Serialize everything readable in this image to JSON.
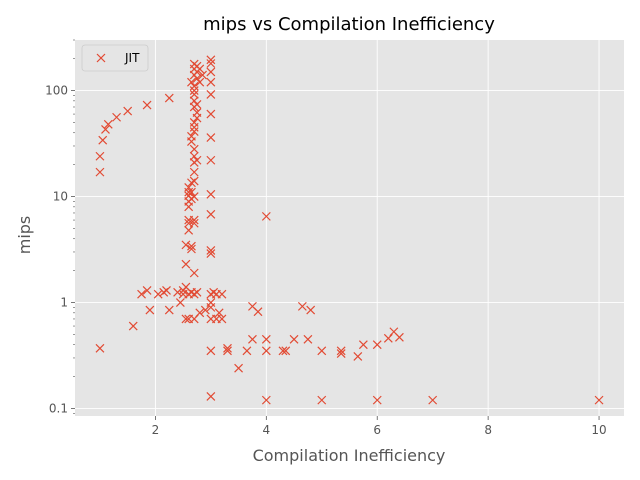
{
  "chart_data": {
    "type": "scatter",
    "title": "mips vs Compilation Inefficiency",
    "xlabel": "Compilation Inefficiency",
    "ylabel": "mips",
    "xscale": "linear",
    "yscale": "log",
    "xlim": [
      0.55,
      10.45
    ],
    "ylim": [
      0.085,
      300
    ],
    "grid": true,
    "legend_position": "upper-left",
    "xticks": [
      {
        "value": 2,
        "label": "2"
      },
      {
        "value": 4,
        "label": "4"
      },
      {
        "value": 6,
        "label": "6"
      },
      {
        "value": 8,
        "label": "8"
      },
      {
        "value": 10,
        "label": "10"
      }
    ],
    "yticks": [
      {
        "value": 0.1,
        "label": "0.1"
      },
      {
        "value": 1,
        "label": "1"
      },
      {
        "value": 10,
        "label": "10"
      },
      {
        "value": 100,
        "label": "100"
      }
    ],
    "series": [
      {
        "name": "JIT",
        "marker": "x",
        "color": "#E24A33",
        "points": [
          [
            1.0,
            17
          ],
          [
            1.0,
            24
          ],
          [
            1.05,
            34
          ],
          [
            1.1,
            43
          ],
          [
            1.15,
            48
          ],
          [
            1.3,
            56
          ],
          [
            1.5,
            64
          ],
          [
            1.85,
            73
          ],
          [
            2.25,
            85
          ],
          [
            1.0,
            0.37
          ],
          [
            1.6,
            0.6
          ],
          [
            1.75,
            1.2
          ],
          [
            1.85,
            1.3
          ],
          [
            1.9,
            0.85
          ],
          [
            2.05,
            1.2
          ],
          [
            2.15,
            1.25
          ],
          [
            2.2,
            1.3
          ],
          [
            2.25,
            0.85
          ],
          [
            2.4,
            1.25
          ],
          [
            2.45,
            1.0
          ],
          [
            2.5,
            1.3
          ],
          [
            2.5,
            1.2
          ],
          [
            2.55,
            0.7
          ],
          [
            2.55,
            1.4
          ],
          [
            2.6,
            1.2
          ],
          [
            2.6,
            0.7
          ],
          [
            2.65,
            1.25
          ],
          [
            2.7,
            1.2
          ],
          [
            2.7,
            0.7
          ],
          [
            2.75,
            1.25
          ],
          [
            2.8,
            0.8
          ],
          [
            2.9,
            0.85
          ],
          [
            3.0,
            0.35
          ],
          [
            3.0,
            0.13
          ],
          [
            3.0,
            0.7
          ],
          [
            3.0,
            0.9
          ],
          [
            3.0,
            1.0
          ],
          [
            3.0,
            1.2
          ],
          [
            3.05,
            1.25
          ],
          [
            3.1,
            0.7
          ],
          [
            3.1,
            1.2
          ],
          [
            3.15,
            0.8
          ],
          [
            3.2,
            0.7
          ],
          [
            3.2,
            1.2
          ],
          [
            2.55,
            2.3
          ],
          [
            2.55,
            3.5
          ],
          [
            2.6,
            4.8
          ],
          [
            2.6,
            5.6
          ],
          [
            2.6,
            6.0
          ],
          [
            2.65,
            3.2
          ],
          [
            2.65,
            3.4
          ],
          [
            2.7,
            1.9
          ],
          [
            2.7,
            5.6
          ],
          [
            2.7,
            6.0
          ],
          [
            2.6,
            8.0
          ],
          [
            2.6,
            9.0
          ],
          [
            2.6,
            10.2
          ],
          [
            2.6,
            11.0
          ],
          [
            2.6,
            12.2
          ],
          [
            2.65,
            13.5
          ],
          [
            2.65,
            9.5
          ],
          [
            2.65,
            11
          ],
          [
            2.7,
            10
          ],
          [
            2.7,
            14
          ],
          [
            2.7,
            17
          ],
          [
            2.7,
            21
          ],
          [
            2.75,
            22
          ],
          [
            2.7,
            24
          ],
          [
            2.7,
            28
          ],
          [
            2.65,
            33
          ],
          [
            2.65,
            37
          ],
          [
            2.7,
            41
          ],
          [
            2.7,
            45
          ],
          [
            2.7,
            50
          ],
          [
            2.75,
            55
          ],
          [
            2.75,
            62
          ],
          [
            2.7,
            70
          ],
          [
            2.75,
            74
          ],
          [
            2.7,
            80
          ],
          [
            2.7,
            92
          ],
          [
            2.7,
            100
          ],
          [
            2.7,
            110
          ],
          [
            2.65,
            120
          ],
          [
            2.75,
            130
          ],
          [
            2.7,
            140
          ],
          [
            2.75,
            150
          ],
          [
            2.7,
            160
          ],
          [
            2.75,
            170
          ],
          [
            2.7,
            178
          ],
          [
            2.8,
            120
          ],
          [
            2.8,
            160
          ],
          [
            2.85,
            140
          ],
          [
            3.0,
            2.9
          ],
          [
            3.0,
            3.1
          ],
          [
            3.0,
            6.8
          ],
          [
            3.0,
            10.5
          ],
          [
            3.0,
            22
          ],
          [
            3.0,
            36
          ],
          [
            3.0,
            60
          ],
          [
            3.0,
            92
          ],
          [
            3.0,
            120
          ],
          [
            3.0,
            150
          ],
          [
            3.0,
            180
          ],
          [
            3.0,
            195
          ],
          [
            3.3,
            0.35
          ],
          [
            3.3,
            0.37
          ],
          [
            3.5,
            0.24
          ],
          [
            3.65,
            0.35
          ],
          [
            3.75,
            0.45
          ],
          [
            3.75,
            0.92
          ],
          [
            3.85,
            0.82
          ],
          [
            4.0,
            0.35
          ],
          [
            4.0,
            0.45
          ],
          [
            4.0,
            0.12
          ],
          [
            4.0,
            6.5
          ],
          [
            4.3,
            0.35
          ],
          [
            4.35,
            0.35
          ],
          [
            4.5,
            0.45
          ],
          [
            4.65,
            0.92
          ],
          [
            4.75,
            0.45
          ],
          [
            4.8,
            0.85
          ],
          [
            5.0,
            0.12
          ],
          [
            5.0,
            0.35
          ],
          [
            5.35,
            0.35
          ],
          [
            5.35,
            0.33
          ],
          [
            5.65,
            0.31
          ],
          [
            5.75,
            0.4
          ],
          [
            6.0,
            0.12
          ],
          [
            6.0,
            0.4
          ],
          [
            6.2,
            0.46
          ],
          [
            6.3,
            0.53
          ],
          [
            6.4,
            0.47
          ],
          [
            7.0,
            0.12
          ],
          [
            10.0,
            0.12
          ]
        ]
      }
    ]
  }
}
